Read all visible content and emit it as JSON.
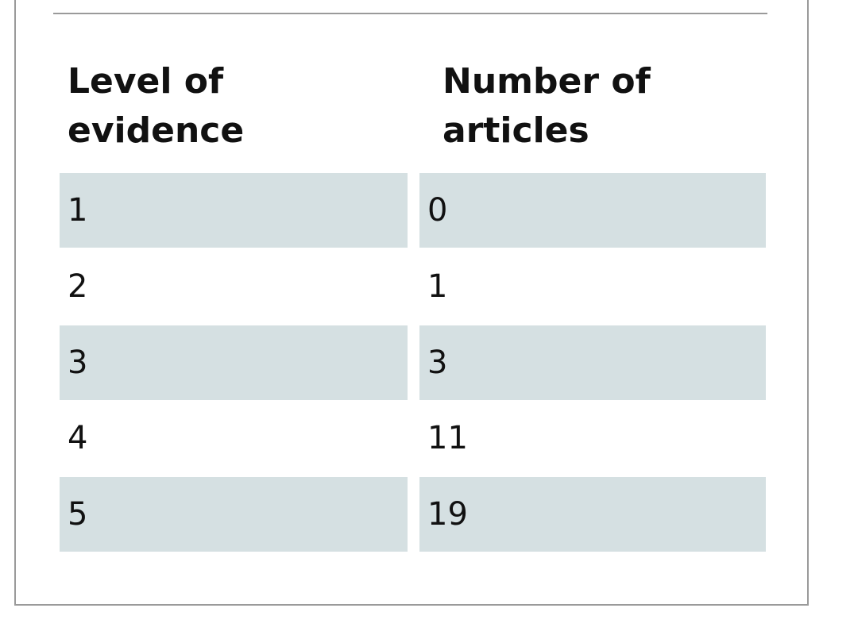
{
  "table": {
    "header": [
      "Level of evidence",
      "Number of articles"
    ],
    "rows": [
      [
        1,
        0
      ],
      [
        2,
        1
      ],
      [
        3,
        3
      ],
      [
        4,
        11
      ],
      [
        5,
        19
      ]
    ]
  }
}
